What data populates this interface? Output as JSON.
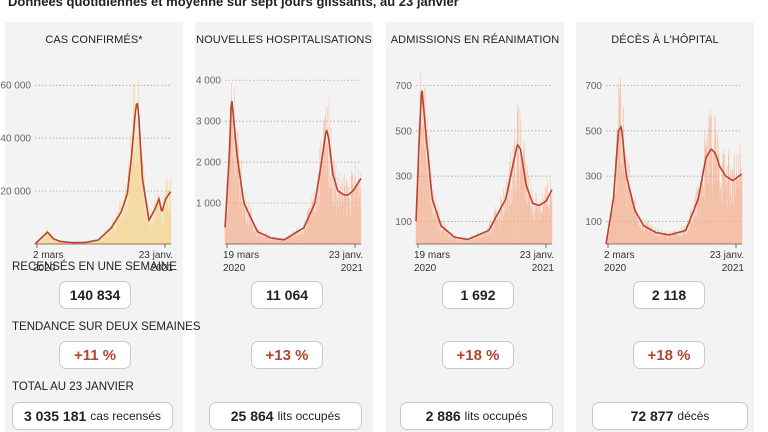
{
  "subtitle": "Données quotidiennes et moyenne sur sept jours glissants, au 23 janvier",
  "row_labels": {
    "weekly": "RECENSÉS EN UNE SEMAINE",
    "trend": "TENDANCE SUR DEUX SEMAINES",
    "total": "TOTAL AU 23 JANVIER"
  },
  "colors": {
    "panel_bg": "#f3f3f3",
    "line": "#b8432f",
    "cases_bar": "#f6d389",
    "other_bar": "#f4b08f",
    "trend_text": "#b8432f"
  },
  "panels": [
    {
      "title": "CAS CONFIRMÉS*",
      "weekly": "140 834",
      "trend": "+11 %",
      "total_value": "3 035 181",
      "total_unit": "cas recensés",
      "x_start": "2 mars",
      "x_start_year": "2020",
      "x_end": "23 janv.",
      "x_end_year": "2021"
    },
    {
      "title": "NOUVELLES HOSPITALISATIONS",
      "weekly": "11 064",
      "trend": "+13 %",
      "total_value": "25 864",
      "total_unit": "lits occupés",
      "x_start": "19 mars",
      "x_start_year": "2020",
      "x_end": "23 janv.",
      "x_end_year": "2021"
    },
    {
      "title": "ADMISSIONS EN RÉANIMATION",
      "weekly": "1 692",
      "trend": "+18 %",
      "total_value": "2 886",
      "total_unit": "lits occupés",
      "x_start": "19 mars",
      "x_start_year": "2020",
      "x_end": "23 janv.",
      "x_end_year": "2021"
    },
    {
      "title": "DÉCÈS À L'HÔPITAL",
      "weekly": "2 118",
      "trend": "+18 %",
      "total_value": "72 877",
      "total_unit": "décès",
      "x_start": "2 mars",
      "x_start_year": "2020",
      "x_end": "23 janv.",
      "x_end_year": "2021"
    }
  ],
  "chart_data": [
    {
      "type": "area",
      "title": "CAS CONFIRMÉS*",
      "bar_color": "#f6d389",
      "x": [
        "2020-03-02",
        "2020-04-01",
        "2020-04-15",
        "2020-05-01",
        "2020-06-01",
        "2020-07-01",
        "2020-08-01",
        "2020-09-01",
        "2020-09-25",
        "2020-10-10",
        "2020-10-20",
        "2020-10-28",
        "2020-11-02",
        "2020-11-06",
        "2020-11-15",
        "2020-12-01",
        "2020-12-15",
        "2020-12-25",
        "2021-01-01",
        "2021-01-10",
        "2021-01-23"
      ],
      "y": [
        0,
        4500,
        2000,
        1000,
        500,
        600,
        1500,
        6000,
        12000,
        19000,
        33000,
        48000,
        54000,
        50000,
        25000,
        9000,
        13000,
        17000,
        12000,
        17000,
        20000
      ],
      "ylim": [
        0,
        65000
      ],
      "yticks": [
        20000,
        40000,
        60000
      ],
      "ytick_labels": [
        "20 000",
        "40 000",
        "60 000"
      ]
    },
    {
      "type": "area",
      "title": "NOUVELLES HOSPITALISATIONS",
      "bar_color": "#f4b08f",
      "x": [
        "2020-03-19",
        "2020-03-28",
        "2020-04-03",
        "2020-04-15",
        "2020-05-01",
        "2020-06-01",
        "2020-07-01",
        "2020-08-01",
        "2020-09-15",
        "2020-10-10",
        "2020-10-25",
        "2020-11-05",
        "2020-11-10",
        "2020-11-20",
        "2020-12-01",
        "2020-12-15",
        "2020-12-25",
        "2021-01-05",
        "2021-01-23"
      ],
      "y": [
        400,
        2000,
        3600,
        2200,
        1000,
        300,
        150,
        100,
        400,
        1000,
        2000,
        2800,
        2600,
        1700,
        1300,
        1200,
        1200,
        1300,
        1600
      ],
      "ylim": [
        0,
        4200
      ],
      "yticks": [
        1000,
        2000,
        3000,
        4000
      ],
      "ytick_labels": [
        "1 000",
        "2 000",
        "3 000",
        "4 000"
      ]
    },
    {
      "type": "area",
      "title": "ADMISSIONS EN RÉANIMATION",
      "bar_color": "#f4b08f",
      "x": [
        "2020-03-19",
        "2020-03-26",
        "2020-04-01",
        "2020-04-10",
        "2020-04-25",
        "2020-05-15",
        "2020-06-15",
        "2020-07-15",
        "2020-09-01",
        "2020-10-10",
        "2020-10-25",
        "2020-11-05",
        "2020-11-12",
        "2020-11-25",
        "2020-12-10",
        "2020-12-25",
        "2021-01-10",
        "2021-01-23"
      ],
      "y": [
        100,
        450,
        700,
        500,
        200,
        80,
        30,
        20,
        60,
        200,
        340,
        440,
        420,
        260,
        180,
        170,
        190,
        240
      ],
      "ylim": [
        0,
        760
      ],
      "yticks": [
        100,
        300,
        500,
        700
      ],
      "ytick_labels": [
        "100",
        "300",
        "500",
        "700"
      ]
    },
    {
      "type": "area",
      "title": "DÉCÈS À L'HÔPITAL",
      "bar_color": "#f4b08f",
      "x": [
        "2020-03-02",
        "2020-03-20",
        "2020-04-01",
        "2020-04-08",
        "2020-04-20",
        "2020-05-10",
        "2020-06-01",
        "2020-07-01",
        "2020-08-01",
        "2020-09-10",
        "2020-10-10",
        "2020-10-28",
        "2020-11-10",
        "2020-11-20",
        "2020-12-01",
        "2020-12-15",
        "2021-01-01",
        "2021-01-23"
      ],
      "y": [
        0,
        200,
        500,
        520,
        300,
        150,
        80,
        50,
        40,
        60,
        200,
        380,
        420,
        400,
        340,
        300,
        280,
        310
      ],
      "ylim": [
        0,
        760
      ],
      "yticks": [
        100,
        300,
        500,
        700
      ],
      "ytick_labels": [
        "100",
        "300",
        "500",
        "700"
      ]
    }
  ]
}
